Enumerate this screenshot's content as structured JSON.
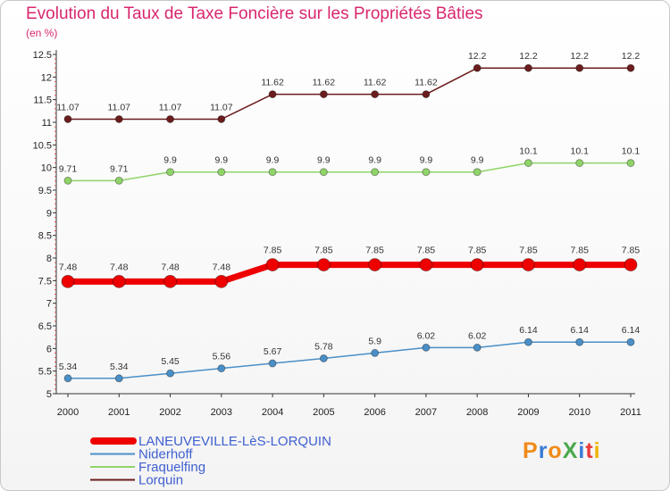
{
  "title": "Evolution du Taux de Taxe Foncière sur les Propriétés Bâties",
  "subtitle": "(en %)",
  "logo": {
    "text": "ProXiti",
    "colors": [
      "#f08a1a",
      "#3a7bd5",
      "#f08a1a",
      "#4aa84a",
      "#3a7bd5",
      "#e83a3a",
      "#f0b400"
    ]
  },
  "chart_data": {
    "type": "line",
    "x": [
      "2000",
      "2001",
      "2002",
      "2003",
      "2004",
      "2005",
      "2006",
      "2007",
      "2008",
      "2009",
      "2010",
      "2011"
    ],
    "y_ticks": [
      "5",
      "5.5",
      "6",
      "6.5",
      "7",
      "7.5",
      "8",
      "8.5",
      "9",
      "9.5",
      "10",
      "10.5",
      "11",
      "11.5",
      "12",
      "12.5"
    ],
    "ylim": [
      5,
      12.5
    ],
    "series": [
      {
        "name": "Lorquin",
        "color": "#6b1c1c",
        "width": 1.5,
        "marker": 4,
        "values": [
          11.07,
          11.07,
          11.07,
          11.07,
          11.62,
          11.62,
          11.62,
          11.62,
          12.2,
          12.2,
          12.2,
          12.2
        ],
        "labels": [
          "11.07",
          "11.07",
          "11.07",
          "11.07",
          "11.62",
          "11.62",
          "11.62",
          "11.62",
          "12.2",
          "12.2",
          "12.2",
          "12.2"
        ]
      },
      {
        "name": "Fraquelfing",
        "color": "#8fd468",
        "width": 1.5,
        "marker": 4,
        "values": [
          9.71,
          9.71,
          9.9,
          9.9,
          9.9,
          9.9,
          9.9,
          9.9,
          9.9,
          10.1,
          10.1,
          10.1
        ],
        "labels": [
          "9.71",
          "9.71",
          "9.9",
          "9.9",
          "9.9",
          "9.9",
          "9.9",
          "9.9",
          "9.9",
          "10.1",
          "10.1",
          "10.1"
        ]
      },
      {
        "name": "LANEUVEVILLE-LèS-LORQUIN",
        "color": "#ee0000",
        "width": 7,
        "marker": 7,
        "values": [
          7.48,
          7.48,
          7.48,
          7.48,
          7.85,
          7.85,
          7.85,
          7.85,
          7.85,
          7.85,
          7.85,
          7.85
        ],
        "labels": [
          "7.48",
          "7.48",
          "7.48",
          "7.48",
          "7.85",
          "7.85",
          "7.85",
          "7.85",
          "7.85",
          "7.85",
          "7.85",
          "7.85"
        ]
      },
      {
        "name": "Niderhoff",
        "color": "#4a8fc7",
        "width": 1.5,
        "marker": 4,
        "values": [
          5.34,
          5.34,
          5.45,
          5.56,
          5.67,
          5.78,
          5.9,
          6.02,
          6.02,
          6.14,
          6.14,
          6.14
        ],
        "labels": [
          "5.34",
          "5.34",
          "5.45",
          "5.56",
          "5.67",
          "5.78",
          "5.9",
          "6.02",
          "6.02",
          "6.14",
          "6.14",
          "6.14"
        ]
      }
    ],
    "legend": [
      {
        "name": "LANEUVEVILLE-LèS-LORQUIN",
        "color": "#ee0000",
        "thick": true
      },
      {
        "name": "Niderhoff",
        "color": "#4a8fc7",
        "thick": false
      },
      {
        "name": "Fraquelfing",
        "color": "#8fd468",
        "thick": false
      },
      {
        "name": "Lorquin",
        "color": "#6b1c1c",
        "thick": false
      }
    ],
    "grid": false,
    "legend_position": "bottom-left"
  }
}
